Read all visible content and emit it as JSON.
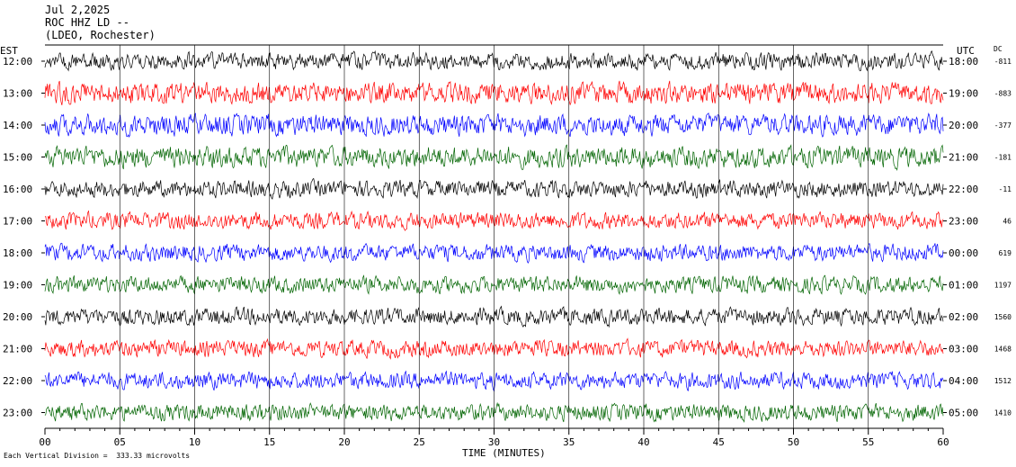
{
  "header": {
    "date": "Jul 2,2025",
    "station": "ROC HHZ LD --",
    "network": "(LDEO, Rochester)"
  },
  "left_axis_title": "EST",
  "right_axis_title": "UTC",
  "dc_title": "DC",
  "footer": {
    "scale_note": "Each Vertical Division =  333.33 microvolts"
  },
  "chart_data": {
    "type": "line",
    "title": "Jul 2,2025",
    "xlabel": "TIME (MINUTES)",
    "ylabel": "",
    "xlim": [
      0,
      60
    ],
    "x_ticks": [
      "00",
      "05",
      "10",
      "15",
      "20",
      "25",
      "30",
      "35",
      "40",
      "45",
      "50",
      "55",
      "60"
    ],
    "trace_colors": [
      "#000000",
      "#ff0000",
      "#0000ff",
      "#006400"
    ],
    "rows": [
      {
        "est": "12:00",
        "utc": "18:00",
        "dc": "-811"
      },
      {
        "est": "13:00",
        "utc": "19:00",
        "dc": "-883"
      },
      {
        "est": "14:00",
        "utc": "20:00",
        "dc": "-377"
      },
      {
        "est": "15:00",
        "utc": "21:00",
        "dc": "-181"
      },
      {
        "est": "16:00",
        "utc": "22:00",
        "dc": "-11"
      },
      {
        "est": "17:00",
        "utc": "23:00",
        "dc": "46"
      },
      {
        "est": "18:00",
        "utc": "00:00",
        "dc": "619"
      },
      {
        "est": "19:00",
        "utc": "01:00",
        "dc": "1197"
      },
      {
        "est": "20:00",
        "utc": "02:00",
        "dc": "1560"
      },
      {
        "est": "21:00",
        "utc": "03:00",
        "dc": "1468"
      },
      {
        "est": "22:00",
        "utc": "04:00",
        "dc": "1512"
      },
      {
        "est": "23:00",
        "utc": "05:00",
        "dc": "1410"
      }
    ]
  }
}
